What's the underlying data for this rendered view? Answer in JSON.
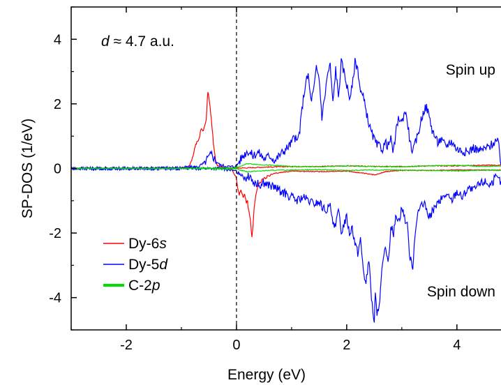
{
  "chart_data": {
    "type": "line",
    "xlabel": "Energy (eV)",
    "ylabel": "SP-DOS (1/eV)",
    "xlim": [
      -3,
      4.8
    ],
    "ylim": [
      -5,
      5
    ],
    "xticks": [
      -2,
      0,
      2,
      4
    ],
    "yticks": [
      -4,
      -2,
      0,
      2,
      4
    ],
    "xtick_labels": [
      "-2",
      "0",
      "2",
      "4"
    ],
    "ytick_labels": [
      "-4",
      "-2",
      "0",
      "2",
      "4"
    ],
    "fermi_level": 0,
    "grid": false,
    "legend_position": "lower-left",
    "annotations": {
      "distance_symbol": "d",
      "distance_text": " ≈ 4.7 a.u.",
      "spin_up": "Spin up",
      "spin_down": "Spin down"
    },
    "series": [
      {
        "name": "Dy-6s",
        "legend_label": "Dy-",
        "legend_suffix": "s",
        "legend_prefix_num": "6",
        "color": "#ff0000",
        "line_width": 1.2,
        "up": {
          "x": [
            -3.0,
            -2.5,
            -2.0,
            -1.5,
            -1.0,
            -0.9,
            -0.85,
            -0.8,
            -0.75,
            -0.72,
            -0.68,
            -0.65,
            -0.6,
            -0.55,
            -0.52,
            -0.5,
            -0.48,
            -0.46,
            -0.44,
            -0.42,
            -0.4,
            -0.38,
            -0.35,
            -0.3,
            -0.2,
            -0.1,
            0.0,
            0.2,
            0.5,
            1.0,
            1.5,
            2.0,
            2.5,
            3.0,
            3.5,
            4.0,
            4.5,
            4.8
          ],
          "y": [
            0,
            0,
            0,
            0,
            0.02,
            0.05,
            0.1,
            0.3,
            0.7,
            0.8,
            0.9,
            1.2,
            1.2,
            1.5,
            2.4,
            2.2,
            1.9,
            1.6,
            1.2,
            0.8,
            0.5,
            0.25,
            0.1,
            0.05,
            0.02,
            0.02,
            0.01,
            0.02,
            0.04,
            0.06,
            0.06,
            0.08,
            0.06,
            0.06,
            0.08,
            0.08,
            0.1,
            0.1
          ]
        },
        "down": {
          "x": [
            -3.0,
            -2.0,
            -1.0,
            -0.5,
            -0.1,
            0.0,
            0.02,
            0.05,
            0.08,
            0.12,
            0.15,
            0.18,
            0.2,
            0.22,
            0.25,
            0.28,
            0.3,
            0.32,
            0.35,
            0.4,
            0.5,
            0.7,
            1.0,
            1.5,
            2.0,
            2.3,
            2.5,
            2.7,
            3.0,
            3.5,
            4.0,
            4.5,
            4.8
          ],
          "y": [
            0,
            0,
            0,
            0,
            0,
            -0.3,
            -0.6,
            -0.8,
            -0.7,
            -0.9,
            -0.8,
            -1.1,
            -1.0,
            -1.3,
            -1.6,
            -2.1,
            -1.8,
            -1.2,
            -0.8,
            -0.5,
            -0.3,
            -0.15,
            -0.08,
            -0.1,
            -0.08,
            -0.15,
            -0.2,
            -0.1,
            -0.06,
            -0.06,
            -0.05,
            -0.05,
            -0.05
          ]
        }
      },
      {
        "name": "Dy-5d",
        "legend_label": "Dy-",
        "legend_suffix": "d",
        "legend_prefix_num": "5",
        "color": "#0000ff",
        "line_width": 1.2,
        "up": {
          "x": [
            -3.0,
            -2.0,
            -1.0,
            -0.7,
            -0.6,
            -0.5,
            -0.45,
            -0.4,
            -0.3,
            -0.1,
            0.0,
            0.1,
            0.2,
            0.3,
            0.4,
            0.5,
            0.6,
            0.7,
            0.8,
            0.9,
            1.0,
            1.05,
            1.1,
            1.15,
            1.2,
            1.25,
            1.3,
            1.35,
            1.4,
            1.45,
            1.5,
            1.55,
            1.6,
            1.65,
            1.7,
            1.75,
            1.8,
            1.85,
            1.9,
            1.95,
            2.0,
            2.05,
            2.1,
            2.15,
            2.2,
            2.25,
            2.3,
            2.35,
            2.4,
            2.45,
            2.5,
            2.55,
            2.6,
            2.65,
            2.7,
            2.75,
            2.8,
            2.85,
            2.9,
            2.95,
            3.0,
            3.05,
            3.1,
            3.15,
            3.2,
            3.25,
            3.3,
            3.35,
            3.4,
            3.45,
            3.5,
            3.55,
            3.6,
            3.65,
            3.7,
            3.8,
            3.9,
            4.0,
            4.1,
            4.2,
            4.3,
            4.4,
            4.5,
            4.6,
            4.7,
            4.75,
            4.8
          ],
          "y": [
            0,
            0,
            0.02,
            0.05,
            0.15,
            0.35,
            0.45,
            0.3,
            0.1,
            0.05,
            0.08,
            0.35,
            0.55,
            0.4,
            0.5,
            0.3,
            0.4,
            0.25,
            0.45,
            0.6,
            0.8,
            1.0,
            0.8,
            1.2,
            2.0,
            2.6,
            2.9,
            2.1,
            2.4,
            3.1,
            2.8,
            1.6,
            2.2,
            2.9,
            3.2,
            2.0,
            3.1,
            2.2,
            3.3,
            3.0,
            2.6,
            2.2,
            2.5,
            3.3,
            3.1,
            2.4,
            2.2,
            1.8,
            1.4,
            1.1,
            0.9,
            0.7,
            0.7,
            0.6,
            0.8,
            0.7,
            0.9,
            0.5,
            1.2,
            1.6,
            1.4,
            1.8,
            1.5,
            0.8,
            0.5,
            0.8,
            1.1,
            1.5,
            1.8,
            1.9,
            1.6,
            1.2,
            1.0,
            0.8,
            0.9,
            0.7,
            0.85,
            0.6,
            0.55,
            0.5,
            0.65,
            0.55,
            0.6,
            0.7,
            0.85,
            0.8,
            0.1
          ]
        },
        "down": {
          "x": [
            -3.0,
            -2.0,
            -1.0,
            -0.5,
            -0.3,
            -0.1,
            0.0,
            0.1,
            0.2,
            0.25,
            0.3,
            0.4,
            0.5,
            0.7,
            0.9,
            1.0,
            1.1,
            1.2,
            1.3,
            1.4,
            1.5,
            1.6,
            1.7,
            1.75,
            1.8,
            1.85,
            1.9,
            1.95,
            2.0,
            2.05,
            2.1,
            2.15,
            2.2,
            2.25,
            2.3,
            2.35,
            2.4,
            2.45,
            2.5,
            2.52,
            2.55,
            2.6,
            2.65,
            2.7,
            2.75,
            2.8,
            2.85,
            2.9,
            2.95,
            3.0,
            3.05,
            3.1,
            3.15,
            3.2,
            3.25,
            3.3,
            3.4,
            3.5,
            3.6,
            3.7,
            3.8,
            3.9,
            4.0,
            4.1,
            4.2,
            4.3,
            4.4,
            4.5,
            4.6,
            4.7,
            4.8
          ],
          "y": [
            0,
            0,
            0,
            0,
            0,
            -0.05,
            -0.1,
            -0.2,
            -0.3,
            -0.2,
            -0.4,
            -0.5,
            -0.45,
            -0.6,
            -0.8,
            -0.9,
            -1.0,
            -0.9,
            -1.0,
            -1.1,
            -1.05,
            -1.3,
            -1.2,
            -1.6,
            -1.8,
            -1.3,
            -2.0,
            -1.7,
            -1.5,
            -2.0,
            -1.8,
            -2.3,
            -2.6,
            -2.2,
            -3.1,
            -3.6,
            -2.8,
            -4.0,
            -4.8,
            -3.9,
            -4.6,
            -4.0,
            -3.0,
            -2.5,
            -3.0,
            -1.8,
            -2.0,
            -1.4,
            -1.6,
            -1.2,
            -1.5,
            -1.8,
            -2.8,
            -3.0,
            -1.8,
            -1.3,
            -1.1,
            -1.5,
            -1.2,
            -1.0,
            -0.8,
            -1.0,
            -0.7,
            -0.9,
            -0.6,
            -0.7,
            -0.5,
            -0.4,
            -0.5,
            -0.3,
            -0.4
          ]
        }
      },
      {
        "name": "C-2p",
        "legend_label": "C-",
        "legend_suffix": "p",
        "legend_prefix_num": "2",
        "color": "#00dd00",
        "line_width": 1.2,
        "legend_line_width": 4,
        "up": {
          "x": [
            -3.0,
            -2.0,
            -1.0,
            0.0,
            0.2,
            0.4,
            0.6,
            1.0,
            1.5,
            2.0,
            2.5,
            3.0,
            3.5,
            4.0,
            4.5,
            4.8
          ],
          "y": [
            0,
            0,
            0,
            0.02,
            0.15,
            0.12,
            0.1,
            0.06,
            0.05,
            0.08,
            0.06,
            0.05,
            0.08,
            0.1,
            0.06,
            0.08
          ]
        },
        "down": {
          "x": [
            -3.0,
            -2.0,
            -1.0,
            0.0,
            0.2,
            0.4,
            0.6,
            1.0,
            1.5,
            2.0,
            2.5,
            3.0,
            3.5,
            4.0,
            4.5,
            4.8
          ],
          "y": [
            0,
            0,
            0,
            -0.02,
            -0.1,
            -0.08,
            -0.06,
            -0.05,
            -0.04,
            -0.06,
            -0.05,
            -0.05,
            -0.06,
            -0.08,
            -0.05,
            -0.06
          ]
        }
      }
    ]
  }
}
